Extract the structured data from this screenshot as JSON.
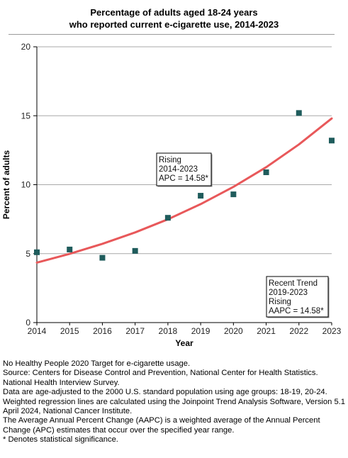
{
  "chart_data": {
    "type": "scatter",
    "title": [
      "Percentage of adults aged 18-24 years",
      "who reported current e-cigarette use, 2014-2023"
    ],
    "xlabel": "Year",
    "ylabel": "Percent of adults",
    "xlim": [
      2014,
      2023
    ],
    "ylim": [
      0,
      20
    ],
    "xticks": [
      "2014",
      "2015",
      "2016",
      "2017",
      "2018",
      "2019",
      "2020",
      "2021",
      "2022",
      "2023"
    ],
    "yticks": [
      "0",
      "5",
      "10",
      "15",
      "20"
    ],
    "grid": "horizontal",
    "points": {
      "x": [
        2014,
        2015,
        2016,
        2017,
        2018,
        2019,
        2020,
        2021,
        2022,
        2023
      ],
      "y": [
        5.1,
        5.3,
        4.7,
        5.2,
        7.6,
        9.2,
        9.3,
        10.9,
        15.2,
        13.2
      ],
      "color": "#1f5c5c"
    },
    "trend": {
      "x": [
        2014,
        2015,
        2016,
        2017,
        2018,
        2019,
        2020,
        2021,
        2022,
        2023
      ],
      "y": [
        4.35,
        4.98,
        5.71,
        6.54,
        7.49,
        8.59,
        9.84,
        11.27,
        12.92,
        14.8
      ],
      "color": "#e8585a"
    },
    "annotations": [
      {
        "lines": [
          "Rising",
          "2014-2023",
          "APC = 14.58*"
        ]
      },
      {
        "lines": [
          "Recent Trend",
          "2019-2023",
          "Rising",
          "AAPC = 14.58*"
        ]
      }
    ]
  },
  "footnotes": [
    "No Healthy People 2020 Target for e-cigarette usage.",
    "Source: Centers for Disease Control and Prevention, National Center for Health Statistics. National Health Interview Survey.",
    "Data are age-adjusted to the 2000 U.S. standard population using age groups: 18-19, 20-24.",
    "Weighted regression lines are calculated using the Joinpoint Trend Analysis Software, Version 5.1 April 2024, National Cancer Institute.",
    "The Average Annual Percent Change (AAPC) is a weighted average of the Annual Percent Change (APC) estimates that occur over the specified year range.",
    "* Denotes statistical significance."
  ]
}
